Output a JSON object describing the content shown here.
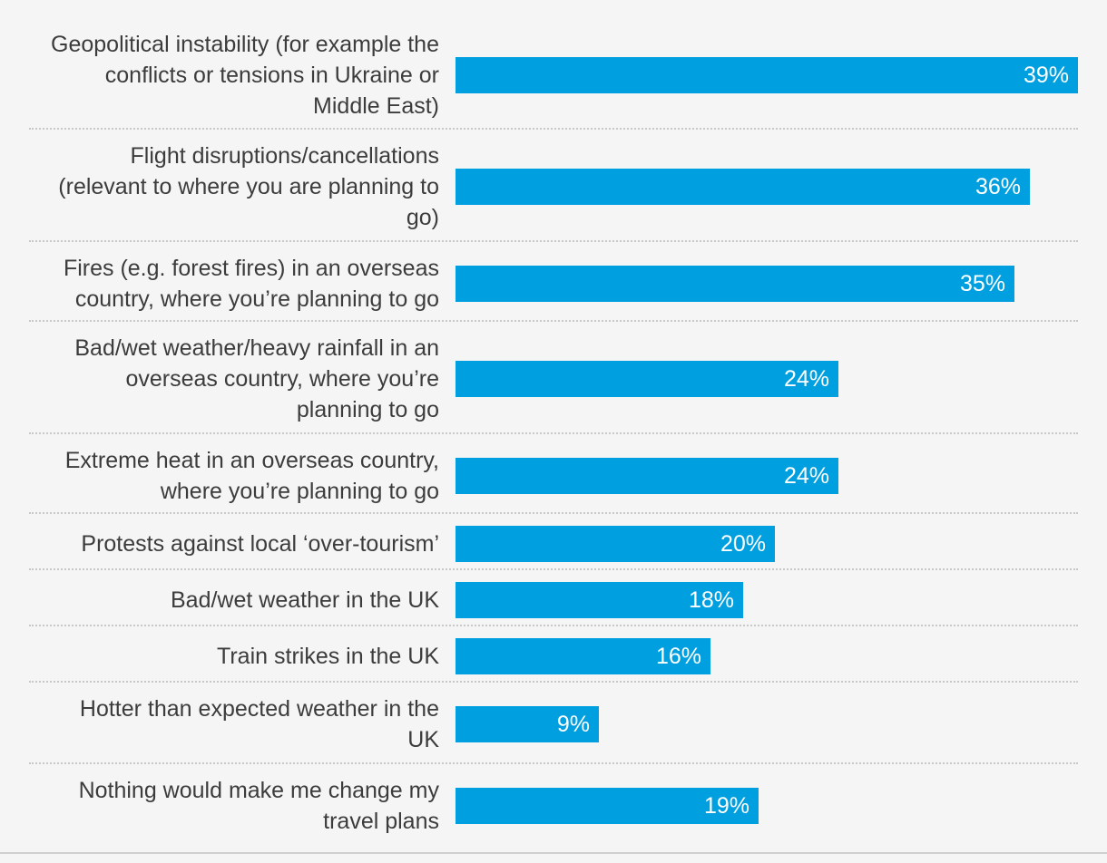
{
  "chart_data": {
    "type": "bar",
    "orientation": "horizontal",
    "title": "",
    "xlabel": "",
    "ylabel": "",
    "xlim": [
      0,
      39
    ],
    "unit": "%",
    "categories": [
      "Geopolitical instability (for example the conflicts or tensions in Ukraine or Middle East)",
      "Flight disruptions/cancellations (relevant to where you are planning to go)",
      "Fires (e.g. forest fires) in an overseas country, where you're planning to go",
      "Bad/wet weather/heavy rainfall in an overseas country, where you're planning to go",
      "Extreme heat in an overseas country, where you're planning to go",
      "Protests against local 'over-tourism'",
      "Bad/wet weather in the UK",
      "Train strikes in the UK",
      "Hotter than expected weather in the UK",
      "Nothing would make me change my travel plans"
    ],
    "label_lines": [
      [
        "Geopolitical instability (for example the",
        "conflicts or tensions in Ukraine or",
        "Middle East)"
      ],
      [
        "Flight disruptions/cancellations",
        "(relevant to where you are planning to",
        "go)"
      ],
      [
        "Fires (e.g. forest fires) in an overseas",
        "country, where you’re planning to go"
      ],
      [
        "Bad/wet weather/heavy rainfall in an",
        "overseas country, where you’re",
        "planning to go"
      ],
      [
        "Extreme heat in an overseas country,",
        "where you’re planning to go"
      ],
      [
        "Protests against local ‘over-tourism’"
      ],
      [
        "Bad/wet weather in the UK"
      ],
      [
        "Train strikes in the UK"
      ],
      [
        "Hotter than expected weather in the",
        "UK"
      ],
      [
        "Nothing would make me change my",
        "travel plans"
      ]
    ],
    "values": [
      39,
      36,
      35,
      24,
      24,
      20,
      18,
      16,
      9,
      19
    ],
    "data_labels": [
      "39%",
      "36%",
      "35%",
      "24%",
      "24%",
      "20%",
      "18%",
      "16%",
      "9%",
      "19%"
    ],
    "colors": {
      "bar": "#009fdf",
      "label_text": "#3c3c3c",
      "value_text": "#ffffff",
      "background": "#f5f5f5",
      "divider": "#c8c8c8"
    }
  }
}
